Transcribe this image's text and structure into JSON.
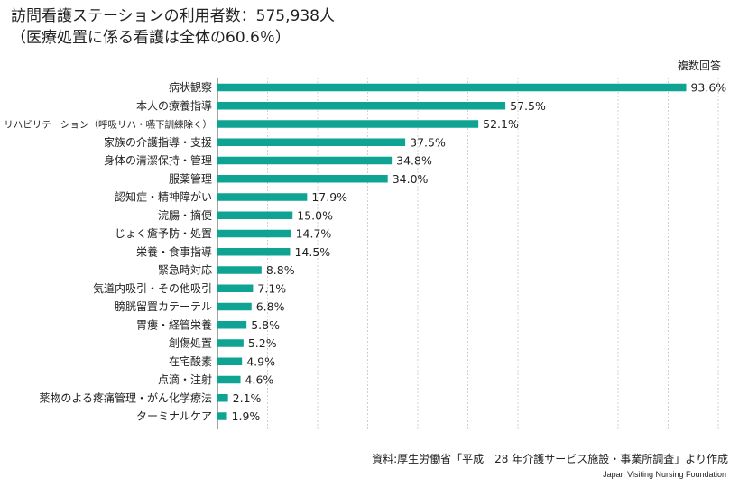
{
  "title_line1": "訪問看護ステーションの利用者数：575,938人",
  "title_line2": "（医療処置に係る看護は全体の60.6％）",
  "note": "複数回答",
  "source": "資料:厚生労働省「平成　28 年介護サービス施設・事業所調査」より作成",
  "org": "Japan Visiting Nursing Foundation",
  "colors": {
    "bar": "#0fa393",
    "grid": "#d0d0d0",
    "axis": "#444444",
    "text": "#222222"
  },
  "chart_data": {
    "type": "bar",
    "orientation": "horizontal",
    "categories": [
      "病状観察",
      "本人の療養指導",
      "リハビリテーション（呼吸リハ・嚥下訓練除く）",
      "家族の介護指導・支援",
      "身体の清潔保持・管理",
      "服薬管理",
      "認知症・精神障がい",
      "浣腸・摘便",
      "じょく瘡予防・処置",
      "栄養・食事指導",
      "緊急時対応",
      "気道内吸引・その他吸引",
      "膀胱留置カテーテル",
      "胃瘻・経管栄養",
      "創傷処置",
      "在宅酸素",
      "点滴・注射",
      "薬物のよる疼痛管理・がん化学療法",
      "ターミナルケア"
    ],
    "values": [
      93.6,
      57.5,
      52.1,
      37.5,
      34.8,
      34.0,
      17.9,
      15.0,
      14.7,
      14.5,
      8.8,
      7.1,
      6.8,
      5.8,
      5.2,
      4.9,
      4.6,
      2.1,
      1.9
    ],
    "value_labels": [
      "93.6%",
      "57.5%",
      "52.1%",
      "37.5%",
      "34.8%",
      "34.0%",
      "17.9%",
      "15.0%",
      "14.7%",
      "14.5%",
      "8.8%",
      "7.1%",
      "6.8%",
      "5.8%",
      "5.2%",
      "4.9%",
      "4.6%",
      "2.1%",
      "1.9%"
    ],
    "unit": "%",
    "xlim": [
      0,
      100
    ],
    "grid": true,
    "gridlines_x": [
      10,
      20,
      30,
      40,
      50,
      60,
      70,
      80,
      90,
      100
    ],
    "legend": "none"
  }
}
